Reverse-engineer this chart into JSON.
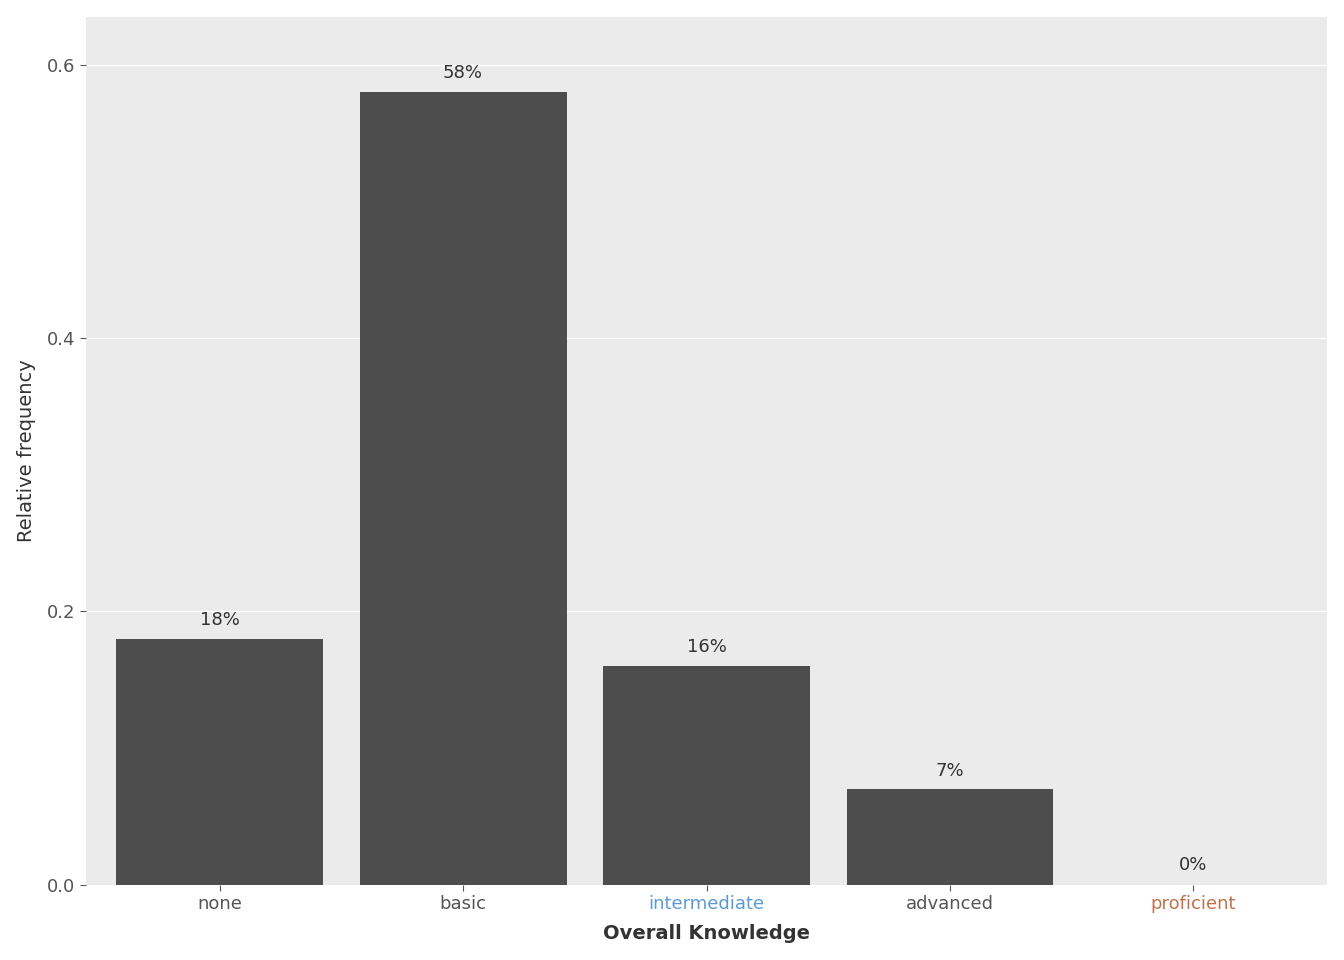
{
  "categories": [
    "none",
    "basic",
    "intermediate",
    "advanced",
    "proficient"
  ],
  "values": [
    0.18,
    0.58,
    0.16,
    0.07,
    0.0
  ],
  "labels": [
    "18%",
    "58%",
    "16%",
    "7%",
    "0%"
  ],
  "bar_color": "#4d4d4d",
  "figure_bg_color": "#ffffff",
  "panel_color": "#ebebeb",
  "grid_color": "#ffffff",
  "xlabel": "Overall Knowledge",
  "ylabel": "Relative frequency",
  "ylim": [
    0,
    0.635
  ],
  "yticks": [
    0.0,
    0.2,
    0.4,
    0.6
  ],
  "bar_width": 0.85,
  "label_fontsize": 13,
  "axis_label_fontsize": 14,
  "tick_label_colors": [
    "#555555",
    "#5b9bd5",
    "#5b9bd5",
    "#555555",
    "#c0724a"
  ],
  "annot_color": "#333333",
  "none_color": "#555555",
  "basic_color": "#555555",
  "intermediate_color": "#5b9bd5",
  "advanced_color": "#555555",
  "proficient_color": "#c0724a"
}
